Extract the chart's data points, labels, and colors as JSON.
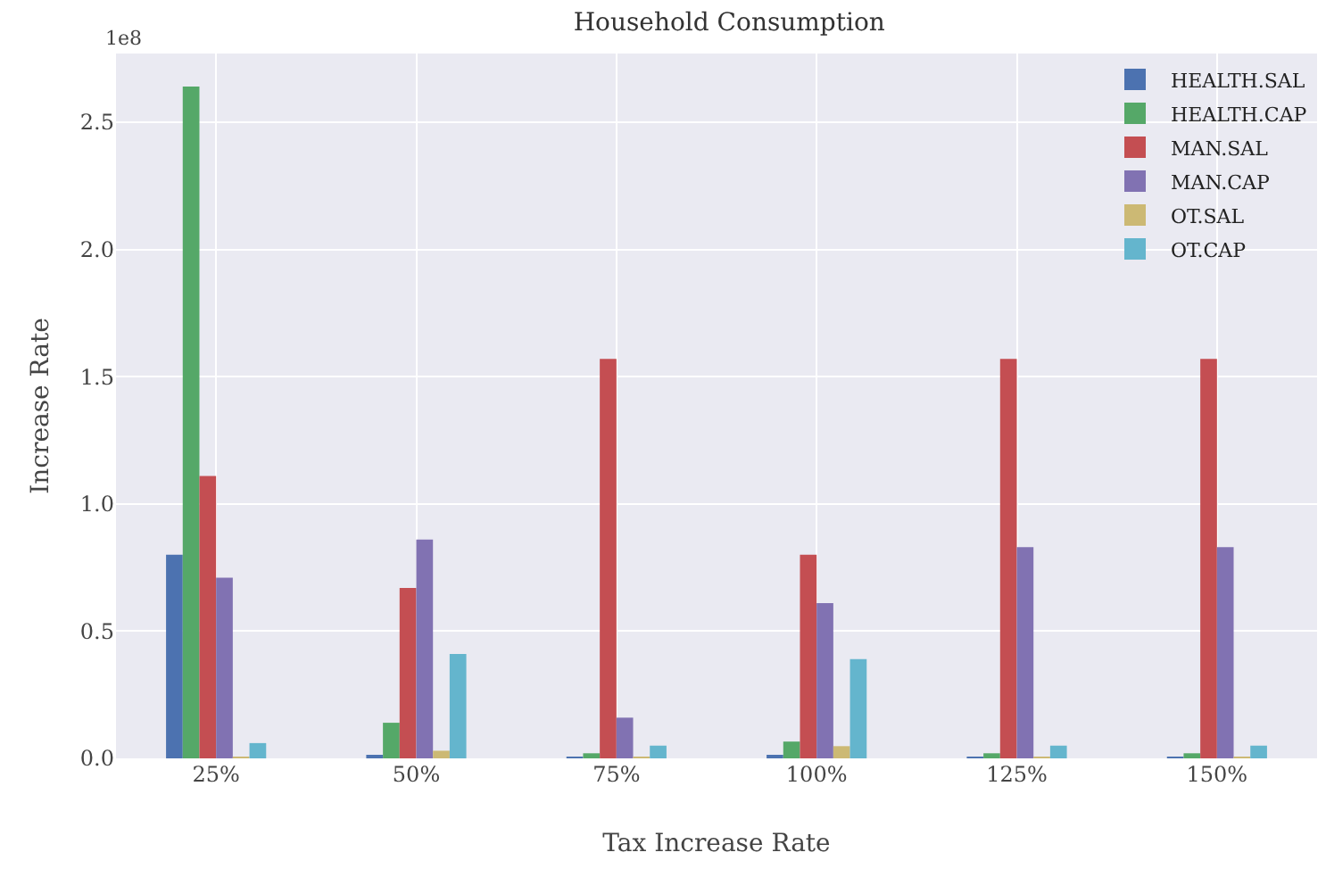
{
  "chart_data": {
    "type": "bar",
    "title": "Household Consumption",
    "xlabel": "Tax Increase Rate",
    "ylabel": "Increase Rate",
    "annotations": [
      "1e8"
    ],
    "categories": [
      "25%",
      "50%",
      "75%",
      "100%",
      "125%",
      "150%"
    ],
    "series": [
      {
        "name": "HEALTH.SAL",
        "color": "#4c72b0",
        "values": [
          0.8,
          0.014,
          0.005,
          0.014,
          0.005,
          0.005
        ]
      },
      {
        "name": "HEALTH.CAP",
        "color": "#55a868",
        "values": [
          2.64,
          0.14,
          0.02,
          0.066,
          0.02,
          0.02
        ]
      },
      {
        "name": "MAN.SAL",
        "color": "#c44e52",
        "values": [
          1.11,
          0.67,
          1.57,
          0.8,
          1.57,
          1.57
        ]
      },
      {
        "name": "MAN.CAP",
        "color": "#8172b2",
        "values": [
          0.71,
          0.86,
          0.16,
          0.61,
          0.83,
          0.83
        ]
      },
      {
        "name": "OT.SAL",
        "color": "#ccb974",
        "values": [
          0.005,
          0.03,
          0.003,
          0.048,
          0.003,
          0.003
        ]
      },
      {
        "name": "OT.CAP",
        "color": "#64b5cd",
        "values": [
          0.06,
          0.41,
          0.05,
          0.39,
          0.05,
          0.05
        ]
      }
    ],
    "ylim": [
      0,
      2.77
    ],
    "yticks": [
      {
        "value": 0,
        "label": "0.0"
      },
      0.5,
      {
        "value": 1,
        "label": "1.0"
      },
      1.5,
      {
        "value": 2,
        "label": "2.0"
      },
      2.5
    ],
    "grid": true,
    "legend": "top right"
  }
}
